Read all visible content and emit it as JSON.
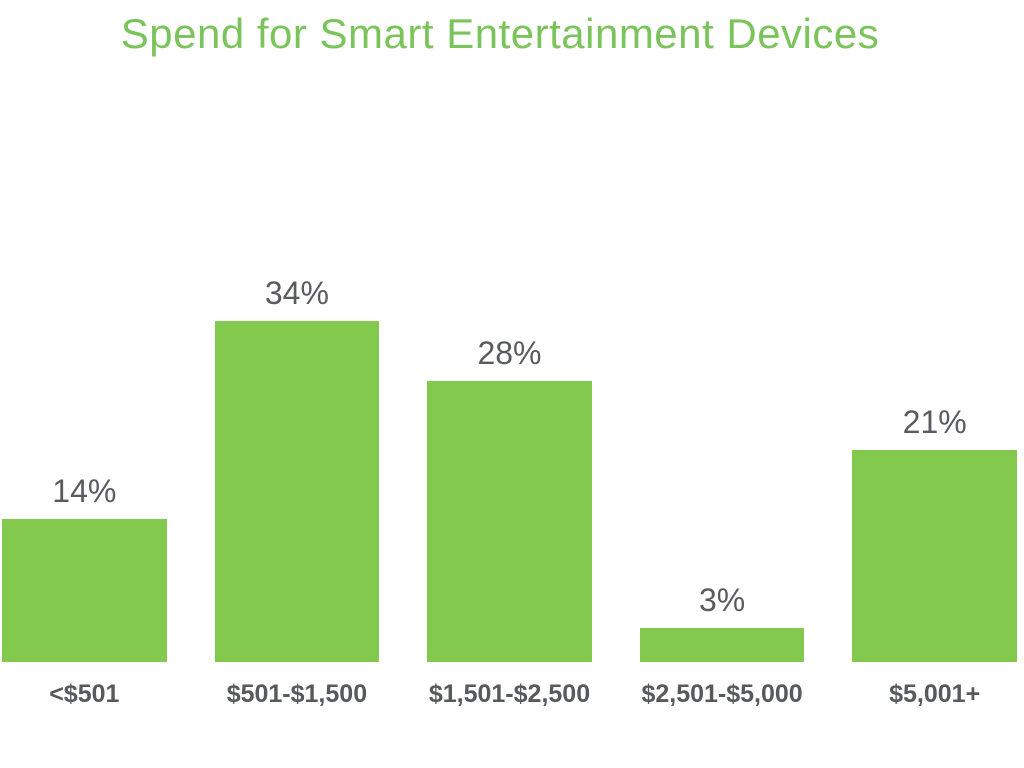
{
  "chart_data": {
    "type": "bar",
    "title": "Spend for Smart Entertainment Devices",
    "categories": [
      "<$501",
      "$501-$1,500",
      "$1,501-$2,500",
      "$2,501-$5,000",
      "$5,001+"
    ],
    "values": [
      14,
      34,
      28,
      3,
      21
    ],
    "value_labels": [
      "14%",
      "34%",
      "28%",
      "3%",
      "21%"
    ],
    "unit": "%",
    "xlabel": "",
    "ylabel": "",
    "ylim": [
      0,
      40
    ],
    "grid": false,
    "legend": false,
    "axes_visible": false
  },
  "colors": {
    "title_green": "#7bc45c",
    "bar_green": "#82c94e",
    "label_gray": "#5a5b5e",
    "category_gray": "#58595b",
    "background": "#ffffff"
  }
}
